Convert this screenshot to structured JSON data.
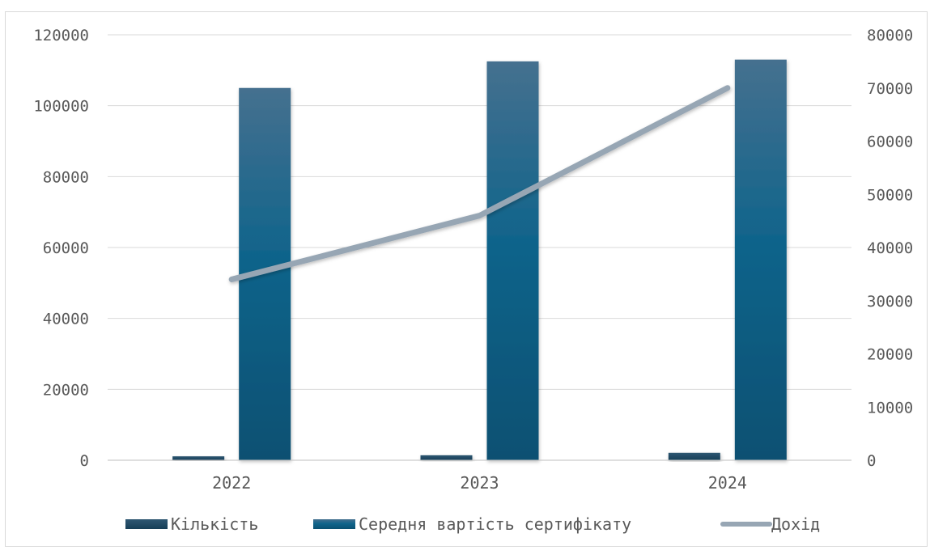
{
  "chart_data": {
    "type": "bar",
    "categories": [
      "2022",
      "2023",
      "2024"
    ],
    "series": [
      {
        "name": "Кількість",
        "type": "bar",
        "axis": "left",
        "values": [
          1100,
          1400,
          2100
        ],
        "color": "#1d4a66"
      },
      {
        "name": "Середня вартість сертифікату",
        "type": "bar",
        "axis": "left",
        "values": [
          105000,
          112500,
          113000
        ],
        "color": "#0e5f84"
      },
      {
        "name": "Дохід",
        "type": "line",
        "axis": "right",
        "values": [
          34000,
          46000,
          70000
        ],
        "color": "#97a6b4"
      }
    ],
    "y_left": {
      "ylim": [
        0,
        120000
      ],
      "ticks": [
        "0",
        "20000",
        "40000",
        "60000",
        "80000",
        "100000",
        "120000"
      ]
    },
    "y_right": {
      "ylim": [
        0,
        80000
      ],
      "ticks": [
        "0",
        "10000",
        "20000",
        "30000",
        "40000",
        "50000",
        "60000",
        "70000",
        "80000"
      ]
    },
    "grid": true,
    "legend_position": "bottom"
  }
}
